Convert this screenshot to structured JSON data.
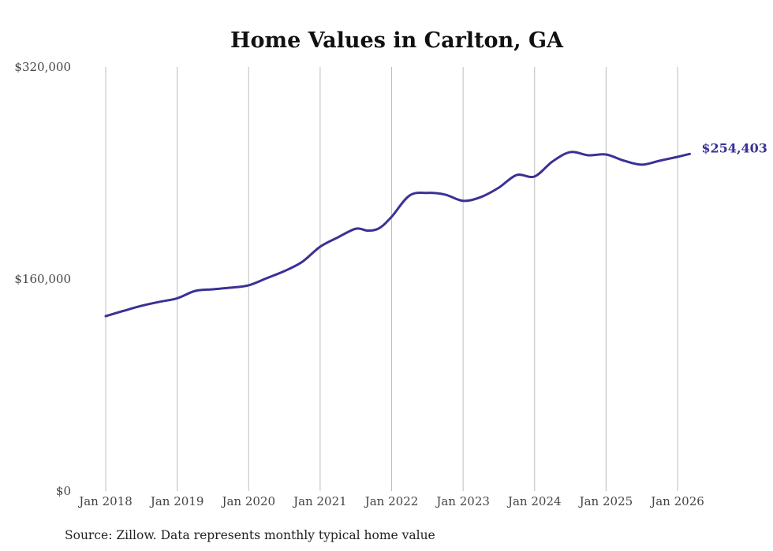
{
  "chart_data": {
    "type": "line",
    "title": "Home Values in Carlton, GA",
    "xlabel": "",
    "ylabel": "",
    "ylim": [
      0,
      320000
    ],
    "y_ticks": [
      0,
      160000,
      320000
    ],
    "y_tick_labels": [
      "$0",
      "$160,000",
      "$320,000"
    ],
    "x_ticks": [
      2018,
      2019,
      2020,
      2021,
      2022,
      2023,
      2024,
      2025,
      2026
    ],
    "x_tick_labels": [
      "Jan 2018",
      "Jan 2019",
      "Jan 2020",
      "Jan 2021",
      "Jan 2022",
      "Jan 2023",
      "Jan 2024",
      "Jan 2025",
      "Jan 2026"
    ],
    "grid": "vertical",
    "series": [
      {
        "name": "Typical home value",
        "color": "#3a3195",
        "x": [
          2018.0,
          2018.25,
          2018.5,
          2018.75,
          2019.0,
          2019.25,
          2019.5,
          2019.75,
          2020.0,
          2020.25,
          2020.5,
          2020.75,
          2021.0,
          2021.25,
          2021.5,
          2021.67,
          2021.83,
          2022.0,
          2022.25,
          2022.5,
          2022.75,
          2023.0,
          2023.25,
          2023.5,
          2023.75,
          2024.0,
          2024.25,
          2024.5,
          2024.75,
          2025.0,
          2025.25,
          2025.5,
          2025.75,
          2026.0,
          2026.17
        ],
        "values": [
          132000,
          136000,
          139800,
          142800,
          145500,
          151000,
          152300,
          153500,
          155300,
          160600,
          166000,
          173000,
          184400,
          191500,
          198000,
          196500,
          198500,
          207000,
          223000,
          225000,
          223700,
          219000,
          221900,
          229000,
          238500,
          237400,
          248700,
          255800,
          253400,
          254000,
          249300,
          246300,
          249300,
          252200,
          254403
        ]
      }
    ],
    "end_label": "$254,403",
    "source": "Source: Zillow. Data represents monthly typical home value"
  }
}
